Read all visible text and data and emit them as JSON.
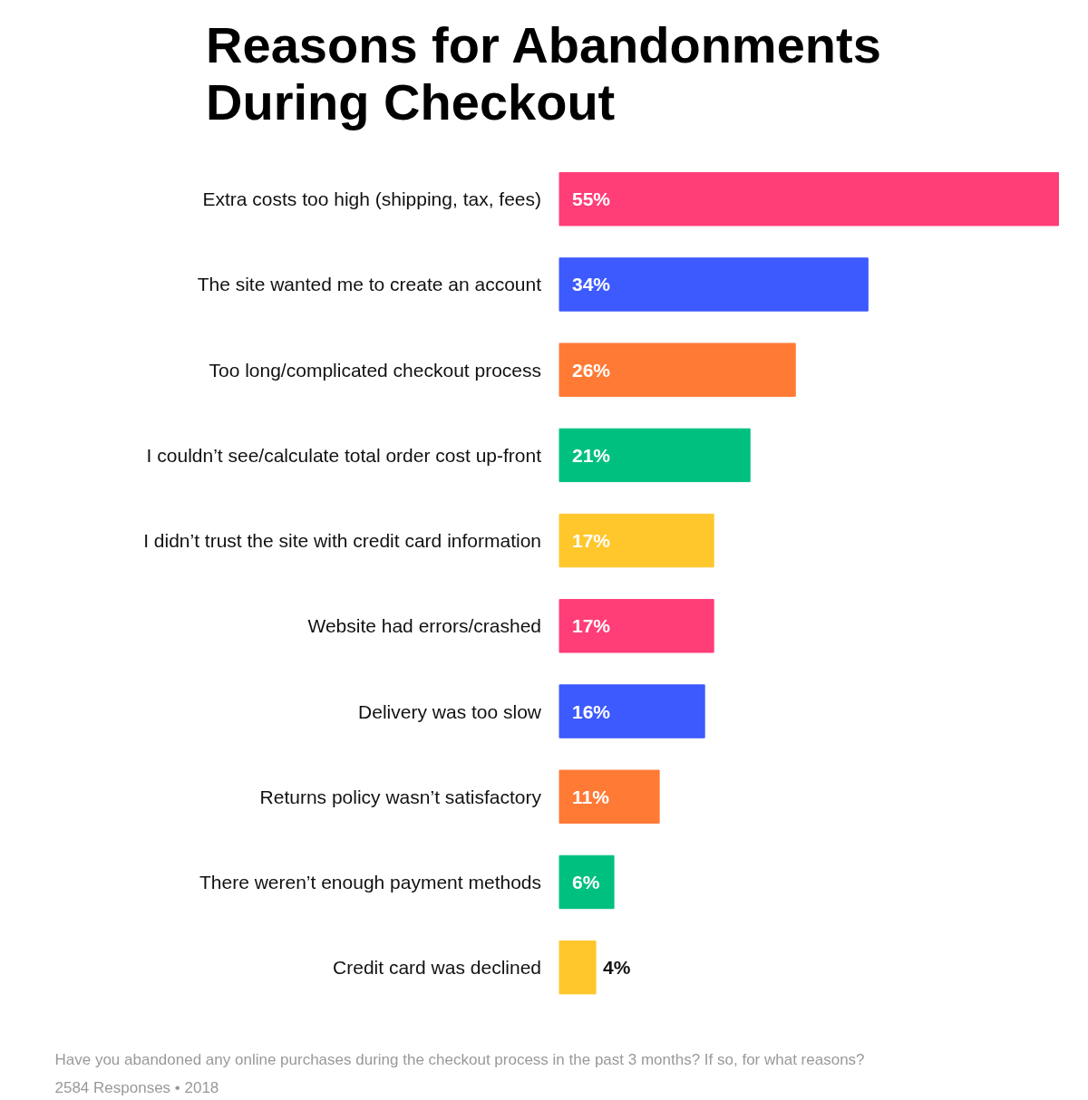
{
  "chart_data": {
    "type": "bar",
    "orientation": "horizontal",
    "title": "Reasons for Abandonments During Checkout",
    "categories": [
      "Extra costs too high (shipping, tax, fees)",
      "The site wanted me to create an account",
      "Too long/complicated checkout process",
      "I couldn’t see/calculate total order cost up-front",
      "I didn’t trust the site with credit card information",
      "Website had errors/crashed",
      "Delivery was too slow",
      "Returns policy wasn’t satisfactory",
      "There weren’t enough payment methods",
      "Credit card was declined"
    ],
    "values": [
      55,
      34,
      26,
      21,
      17,
      17,
      16,
      11,
      6,
      4
    ],
    "value_labels": [
      "55%",
      "34%",
      "26%",
      "21%",
      "17%",
      "17%",
      "16%",
      "11%",
      "6%",
      "4%"
    ],
    "colors": [
      "#ff3d77",
      "#3d5afe",
      "#ff7a35",
      "#00c07f",
      "#ffc72c",
      "#ff3d77",
      "#3d5afe",
      "#ff7a35",
      "#00c07f",
      "#ffc72c"
    ],
    "tick_labels": "y",
    "grid": false,
    "annotations": [
      "Have you abandoned any online purchases during the checkout process in the past 3 months? If so, for what reasons?",
      "2584 Responses  • 2018"
    ]
  }
}
